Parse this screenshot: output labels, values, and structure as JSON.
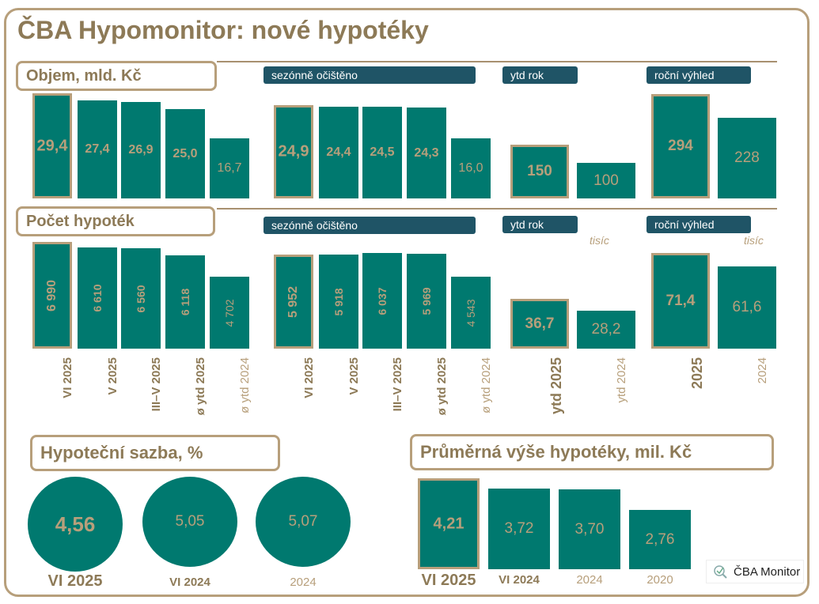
{
  "title": "ČBA Hypomonitor: nové hypotéky",
  "sections": {
    "objem": "Objem, mld. Kč",
    "pocet": "Počet hypoték",
    "sazba": "Hypoteční sazba, %",
    "vyse": "Průměrná výše hypotéky, mil. Kč"
  },
  "tags": {
    "sa": "sezónně očištěno",
    "ytd": "ytd rok",
    "outlook": "roční výhled"
  },
  "unit_label": "tisíc",
  "footer_badge": "ČBA Monitor",
  "colors": {
    "bar": "#00796f",
    "accent": "#b79f7b",
    "tag": "#1f5466",
    "text": "#8d7a57"
  },
  "chart_data": [
    {
      "type": "bar",
      "title": "Objem, mld. Kč",
      "panel": "monthly",
      "categories": [
        "VI 2025",
        "V 2025",
        "III–V 2025",
        "ø ytd 2025",
        "ø ytd 2024"
      ],
      "values": [
        29.4,
        27.4,
        26.9,
        25.0,
        16.7
      ],
      "labels": [
        "29,4",
        "27,4",
        "26,9",
        "25,0",
        "16,7"
      ]
    },
    {
      "type": "bar",
      "title": "sezónně očištěno",
      "panel": "seasonally_adjusted",
      "categories": [
        "VI 2025",
        "V 2025",
        "III–V 2025",
        "ø ytd 2025",
        "ø ytd 2024"
      ],
      "values": [
        24.9,
        24.4,
        24.5,
        24.3,
        16.0
      ],
      "labels": [
        "24,9",
        "24,4",
        "24,5",
        "24,3",
        "16,0"
      ]
    },
    {
      "type": "bar",
      "title": "ytd rok",
      "categories": [
        "ytd 2025",
        "ytd 2024"
      ],
      "values": [
        150,
        100
      ],
      "labels": [
        "150",
        "100"
      ]
    },
    {
      "type": "bar",
      "title": "roční výhled",
      "categories": [
        "2025",
        "2024"
      ],
      "values": [
        294,
        228
      ],
      "labels": [
        "294",
        "228"
      ]
    },
    {
      "type": "bar",
      "title": "Počet hypoték",
      "panel": "monthly",
      "categories": [
        "VI 2025",
        "V 2025",
        "III–V 2025",
        "ø ytd 2025",
        "ø ytd 2024"
      ],
      "values": [
        6990,
        6610,
        6560,
        6118,
        4702
      ],
      "labels": [
        "6 990",
        "6 610",
        "6 560",
        "6 118",
        "4 702"
      ]
    },
    {
      "type": "bar",
      "title": "sezónně očištěno",
      "panel": "seasonally_adjusted",
      "categories": [
        "VI 2025",
        "V 2025",
        "III–V 2025",
        "ø ytd 2025",
        "ø ytd 2024"
      ],
      "values": [
        5952,
        5918,
        6037,
        5969,
        4543
      ],
      "labels": [
        "5 952",
        "5 918",
        "6 037",
        "5 969",
        "4 543"
      ]
    },
    {
      "type": "bar",
      "title": "ytd rok",
      "unit": "tisíc",
      "categories": [
        "ytd 2025",
        "ytd 2024"
      ],
      "values": [
        36.7,
        28.2
      ],
      "labels": [
        "36,7",
        "28,2"
      ]
    },
    {
      "type": "bar",
      "title": "roční výhled",
      "unit": "tisíc",
      "categories": [
        "2025",
        "2024"
      ],
      "values": [
        71.4,
        61.6
      ],
      "labels": [
        "71,4",
        "61,6"
      ]
    },
    {
      "type": "bubble",
      "title": "Hypoteční sazba, %",
      "categories": [
        "VI 2025",
        "VI 2024",
        "2024"
      ],
      "values": [
        4.56,
        5.05,
        5.07
      ],
      "labels": [
        "4,56",
        "5,05",
        "5,07"
      ]
    },
    {
      "type": "bar",
      "title": "Průměrná výše hypotéky, mil. Kč",
      "categories": [
        "VI 2025",
        "VI 2024",
        "2024",
        "2020"
      ],
      "values": [
        4.21,
        3.72,
        3.7,
        2.76
      ],
      "labels": [
        "4,21",
        "3,72",
        "3,70",
        "2,76"
      ]
    }
  ]
}
